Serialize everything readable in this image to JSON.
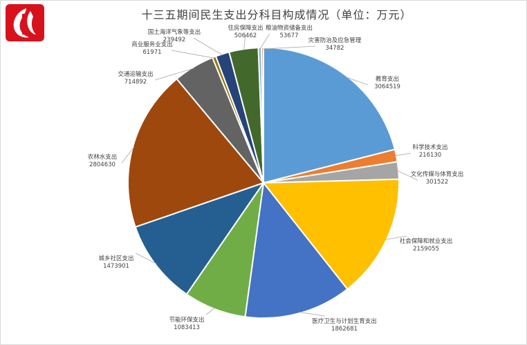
{
  "chart_data": {
    "type": "pie",
    "title": "十三五期间民生支出分科目构成情况（单位：万元）",
    "slices": [
      {
        "label": "教育支出",
        "value": 3064519,
        "color": "#5b9bd5"
      },
      {
        "label": "科学技术支出",
        "value": 216130,
        "color": "#ed7d31"
      },
      {
        "label": "文化传媒与体育支出",
        "value": 301522,
        "color": "#a5a5a5"
      },
      {
        "label": "社会保障和就业支出",
        "value": 2159055,
        "color": "#ffc000"
      },
      {
        "label": "医疗卫生与计划生育支出",
        "value": 1862681,
        "color": "#4472c4"
      },
      {
        "label": "节能环保支出",
        "value": 1083413,
        "color": "#70ad47"
      },
      {
        "label": "城乡社区支出",
        "value": 1473901,
        "color": "#255e91"
      },
      {
        "label": "农林水支出",
        "value": 2804630,
        "color": "#9e480e"
      },
      {
        "label": "交通运输支出",
        "value": 714892,
        "color": "#636363"
      },
      {
        "label": "商业服务业支出",
        "value": 61971,
        "color": "#997300"
      },
      {
        "label": "国土海洋气象等支出",
        "value": 239492,
        "color": "#264478"
      },
      {
        "label": "住房保障支出",
        "value": 506462,
        "color": "#43682b"
      },
      {
        "label": "粮油物资储备支出",
        "value": 53677,
        "color": "#7cafdd"
      },
      {
        "label": "灾害防治及应急管理",
        "value": 34782,
        "color": "#f1975a"
      }
    ]
  }
}
